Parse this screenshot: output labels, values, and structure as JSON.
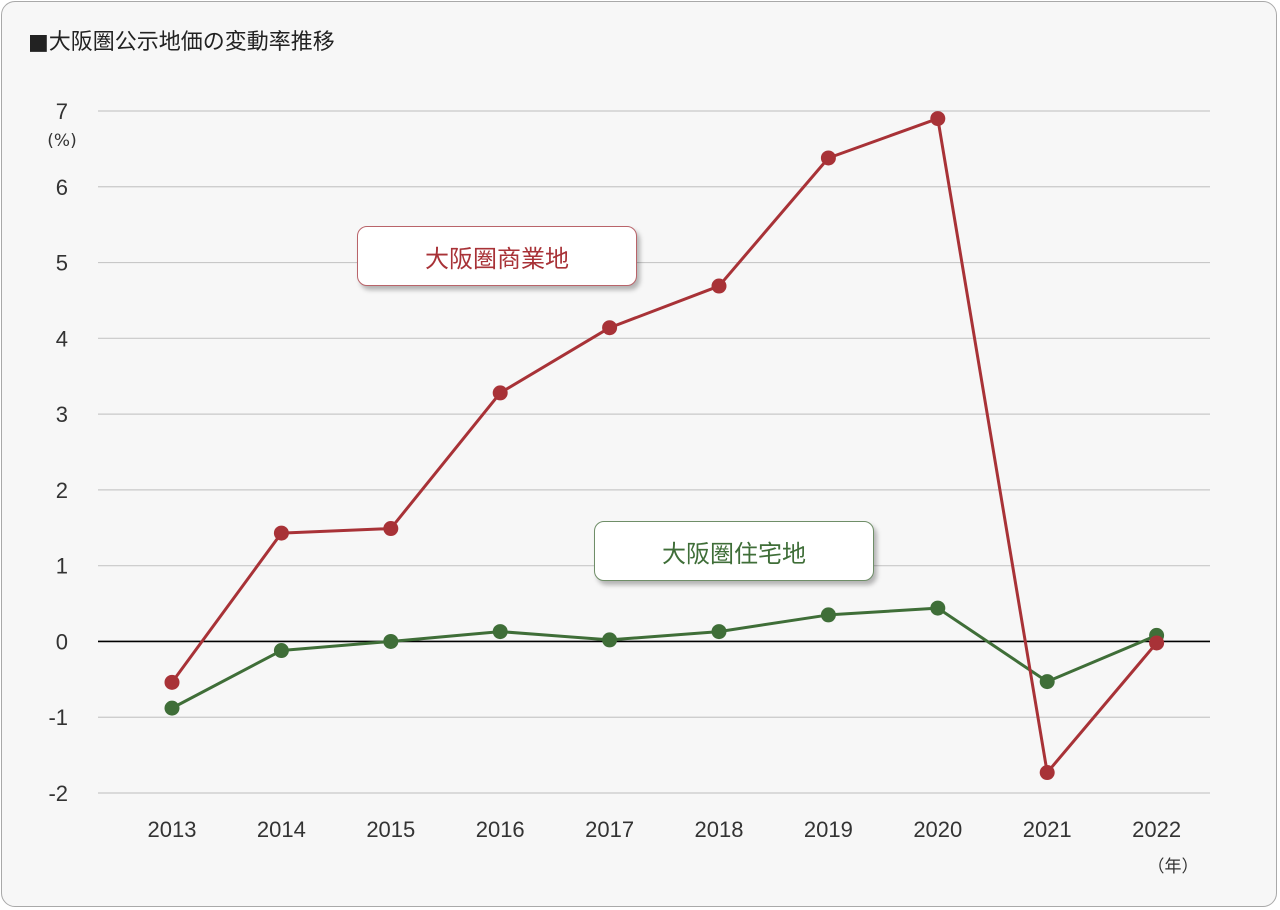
{
  "title": "■大阪圏公示地価の変動率推移",
  "colors": {
    "commercial": "#a83237",
    "residential": "#3f6e38",
    "grid": "#c8c8c8",
    "zero_line": "#000000",
    "background": "#f7f7f7"
  },
  "chart_data": {
    "type": "line",
    "title": "■大阪圏公示地価の変動率推移",
    "y_unit": "(%)",
    "x_unit": "（年）",
    "categories": [
      "2013",
      "2014",
      "2015",
      "2016",
      "2017",
      "2018",
      "2019",
      "2020",
      "2021",
      "2022"
    ],
    "ylim": [
      -2,
      7
    ],
    "yticks": [
      "7",
      "6",
      "5",
      "4",
      "3",
      "2",
      "1",
      "0",
      "-1",
      "-2"
    ],
    "grid": true,
    "series": [
      {
        "name": "大阪圏商業地",
        "color": "#a83237",
        "values": [
          -0.54,
          1.43,
          1.49,
          3.28,
          4.14,
          4.69,
          6.38,
          6.9,
          -1.73,
          -0.02
        ]
      },
      {
        "name": "大阪圏住宅地",
        "color": "#3f6e38",
        "values": [
          -0.88,
          -0.12,
          0.0,
          0.13,
          0.02,
          0.13,
          0.35,
          0.44,
          -0.53,
          0.08
        ]
      }
    ]
  }
}
